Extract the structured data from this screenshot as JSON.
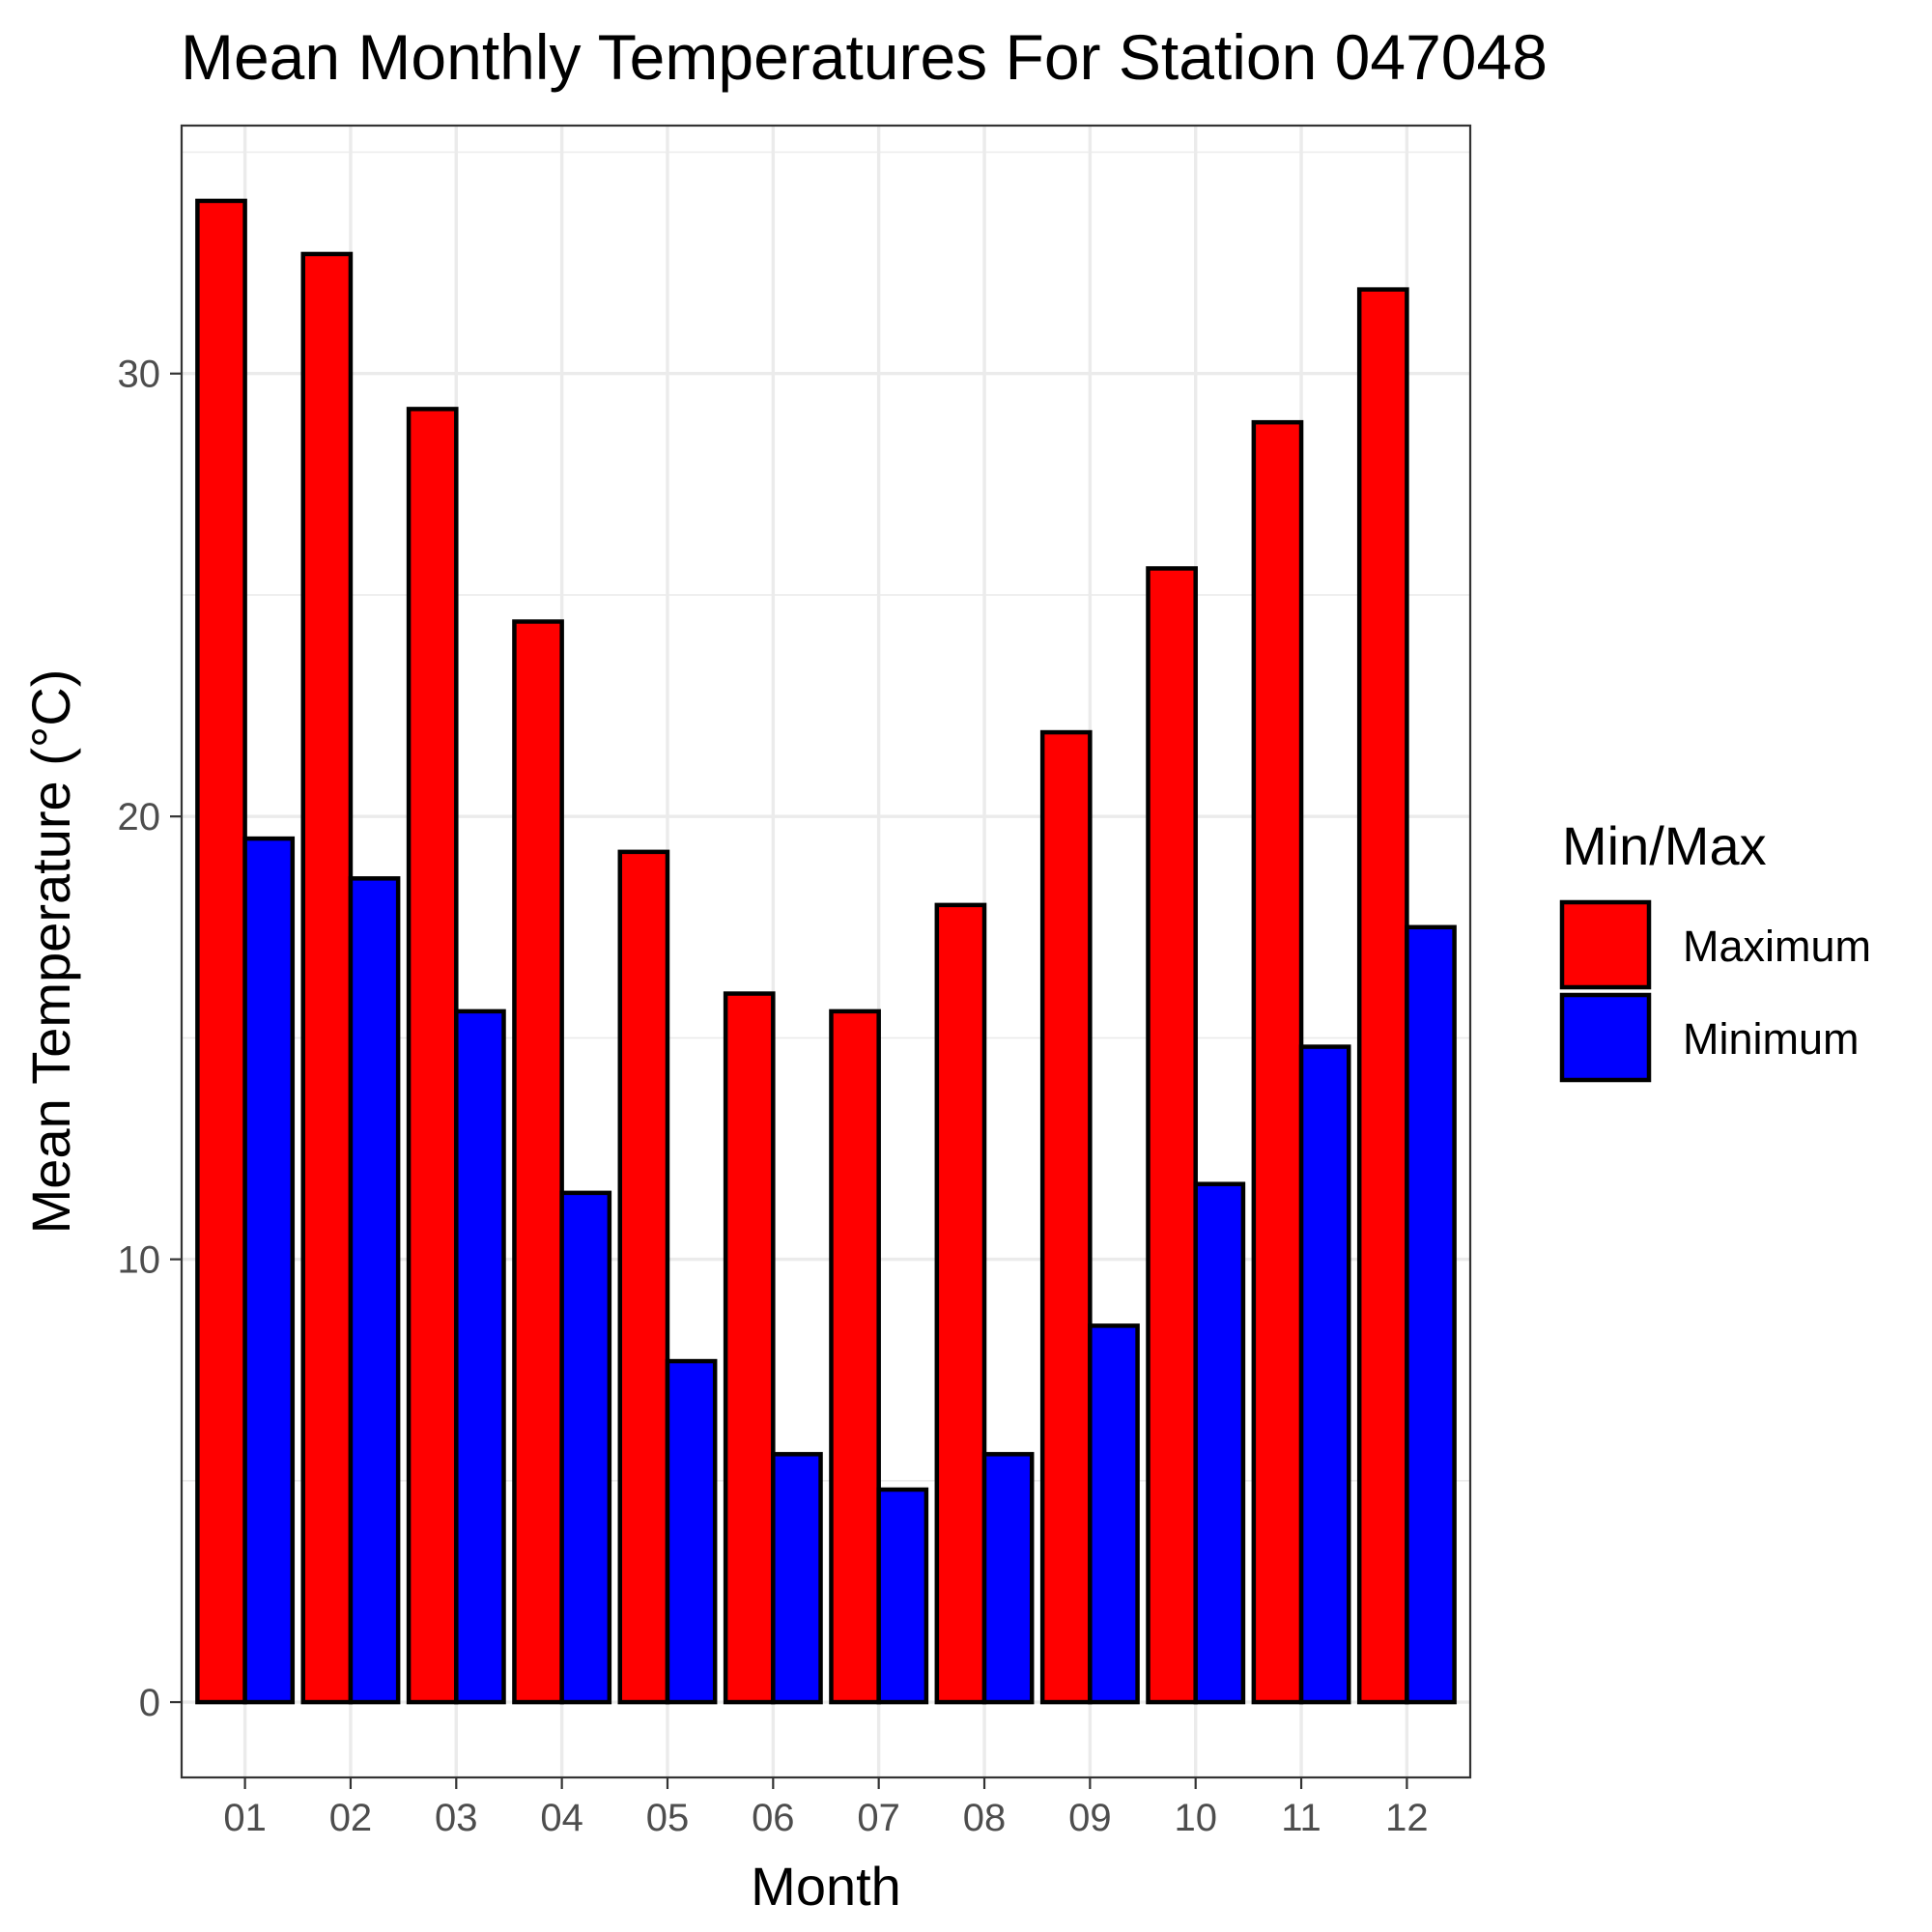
{
  "chart_data": {
    "type": "bar",
    "title": "Mean Monthly Temperatures For Station 047048",
    "xlabel": "Month",
    "ylabel": "Mean Temperature (°C)",
    "categories": [
      "01",
      "02",
      "03",
      "04",
      "05",
      "06",
      "07",
      "08",
      "09",
      "10",
      "11",
      "12"
    ],
    "series": [
      {
        "name": "Maximum",
        "color": "#ff0000",
        "values": [
          33.9,
          32.7,
          29.2,
          24.4,
          19.2,
          16.0,
          15.6,
          18.0,
          21.9,
          25.6,
          28.9,
          31.9
        ]
      },
      {
        "name": "Minimum",
        "color": "#0000ff",
        "values": [
          19.5,
          18.6,
          15.6,
          11.5,
          7.7,
          5.6,
          4.8,
          5.6,
          8.5,
          11.7,
          14.8,
          17.5
        ]
      }
    ],
    "yticks": [
      0,
      10,
      20,
      30
    ],
    "ylim": [
      -1.7,
      35.6
    ],
    "grid": true,
    "legend": {
      "title": "Min/Max",
      "position": "right"
    },
    "bar_outline_color": "#000000"
  }
}
